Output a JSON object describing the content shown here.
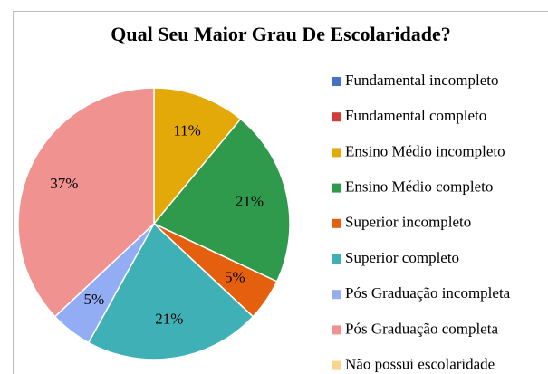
{
  "chart_data": {
    "type": "pie",
    "title": "Qual Seu Maior Grau De Escolaridade?",
    "categories": [
      "Fundamental incompleto",
      "Fundamental completo",
      "Ensino Médio incompleto",
      "Ensino Médio completo",
      "Superior incompleto",
      "Superior completo",
      "Pós Graduação incompleta",
      "Pós Graduação completa",
      "Não possui escolaridade"
    ],
    "values": [
      0,
      0,
      11,
      21,
      5,
      21,
      5,
      37,
      0
    ],
    "value_labels": [
      null,
      null,
      "11%",
      "21%",
      "5%",
      "21%",
      "5%",
      "37%",
      null
    ],
    "colors": [
      "#4472c4",
      "#d13b3b",
      "#e2a908",
      "#2f9a4c",
      "#e5600e",
      "#3fb1b6",
      "#93adf5",
      "#f0928f",
      "#f8d58c"
    ],
    "legend": "right"
  }
}
